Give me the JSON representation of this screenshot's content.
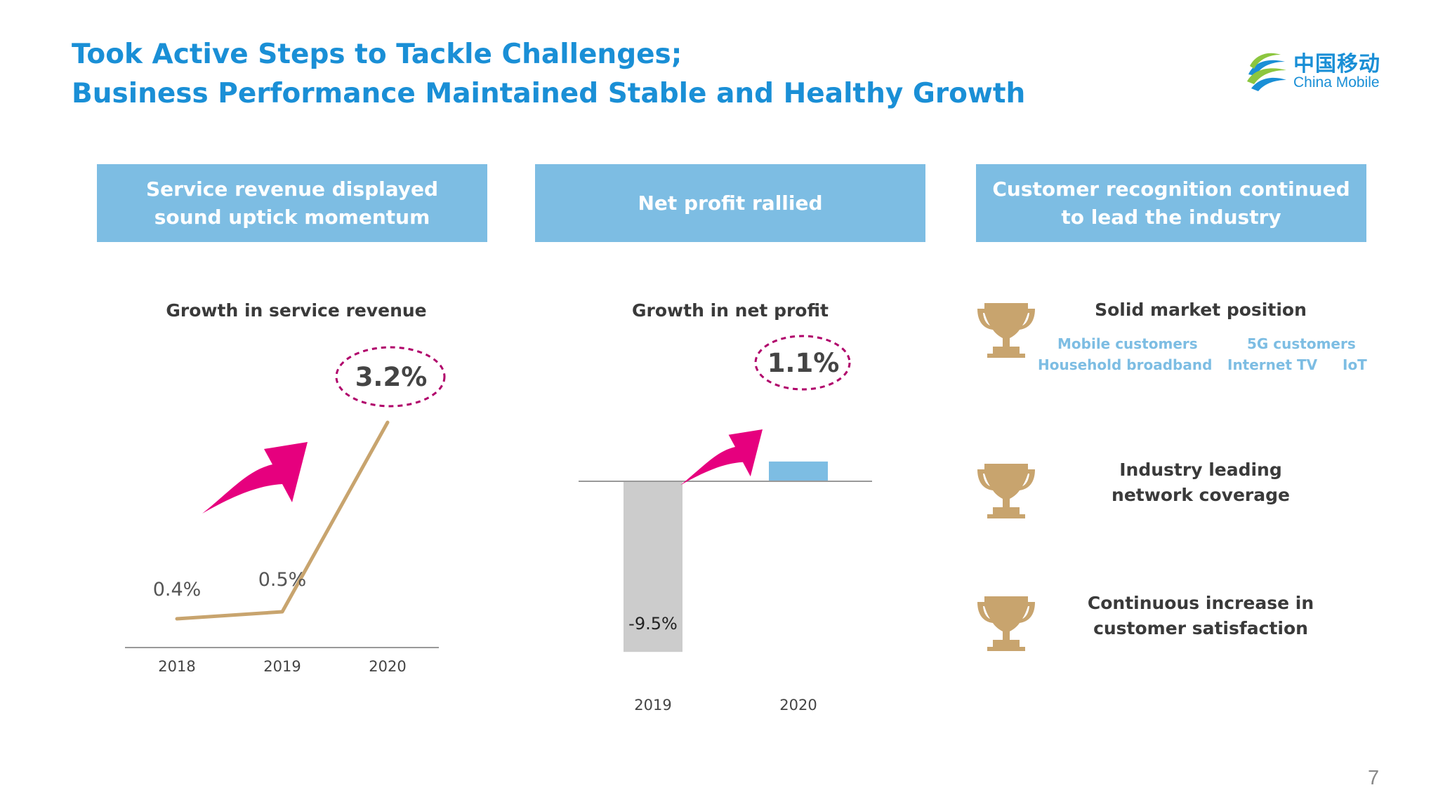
{
  "header": {
    "title_line1": "Took Active Steps to Tackle Challenges;",
    "title_line2": "Business Performance Maintained Stable and Healthy Growth"
  },
  "logo": {
    "cn": "中国移动",
    "en": "China Mobile",
    "icon": "china-mobile-logo-icon"
  },
  "panels": [
    {
      "heading": "Service revenue displayed sound uptick momentum"
    },
    {
      "heading": "Net profit rallied"
    },
    {
      "heading": "Customer recognition continued to lead the industry"
    }
  ],
  "chart_data": [
    {
      "type": "line",
      "title": "Growth in service revenue",
      "categories": [
        "2018",
        "2019",
        "2020"
      ],
      "values": [
        0.4,
        0.5,
        3.2
      ],
      "value_labels": [
        "0.4%",
        "0.5%",
        "3.2%"
      ],
      "highlight": "3.2%",
      "colors": {
        "line": "#c8a46e",
        "axis": "#999999",
        "arrow": "#e6007e",
        "highlight": "#b0006a"
      }
    },
    {
      "type": "bar",
      "title": "Growth in net profit",
      "categories": [
        "2019",
        "2020"
      ],
      "values": [
        -9.5,
        1.1
      ],
      "value_labels": [
        "-9.5%",
        "1.1%"
      ],
      "highlight": "1.1%",
      "colors": {
        "negative": "#cccccc",
        "positive": "#7dbde3",
        "axis": "#999999",
        "arrow": "#e6007e",
        "highlight": "#b0006a"
      }
    }
  ],
  "recognition": {
    "icon": "trophy-icon",
    "trophy_color": "#c8a46e",
    "items": [
      {
        "title": "Solid market position",
        "tags": [
          "Mobile customers",
          "5G customers",
          "Household broadband",
          "Internet TV",
          "IoT"
        ]
      },
      {
        "title": "Industry leading network coverage"
      },
      {
        "title": "Continuous increase in customer satisfaction"
      }
    ]
  },
  "page_number": "7"
}
